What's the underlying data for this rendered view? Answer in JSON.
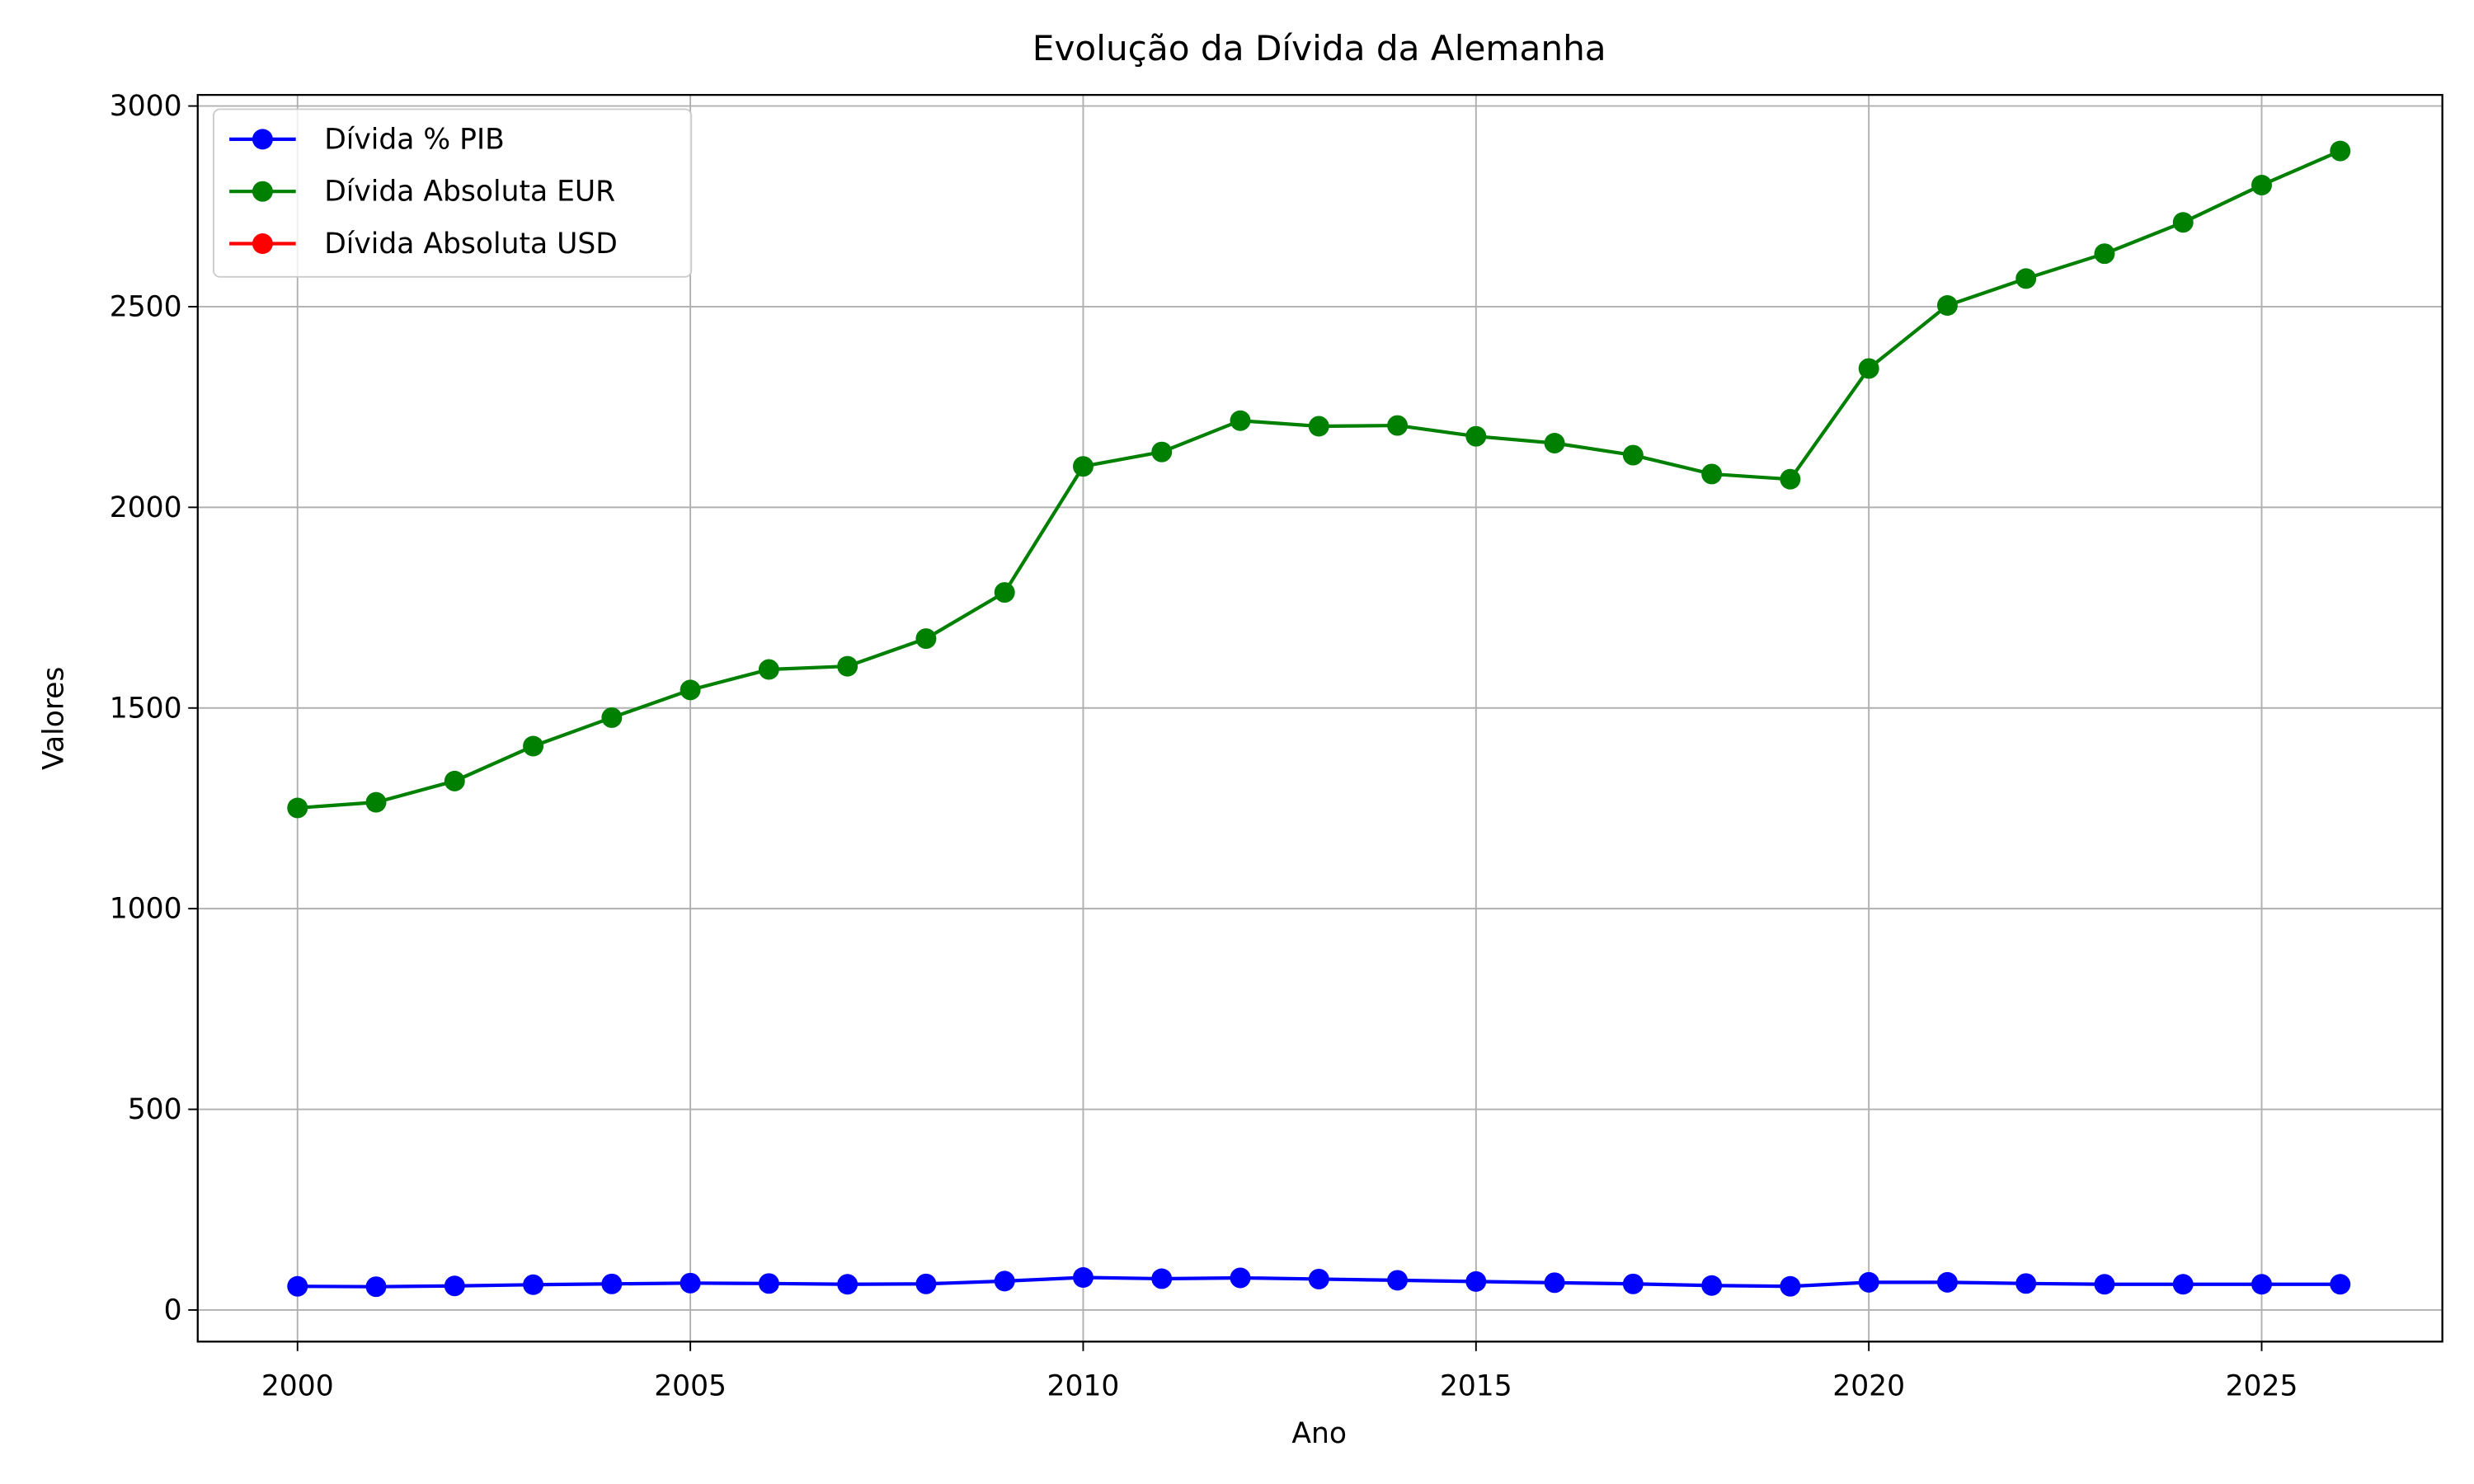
{
  "chart_data": {
    "type": "line",
    "title": "Evolução da Dívida da Alemanha",
    "xlabel": "Ano",
    "ylabel": "Valores",
    "x": [
      2000,
      2001,
      2002,
      2003,
      2004,
      2005,
      2006,
      2007,
      2008,
      2009,
      2010,
      2011,
      2012,
      2013,
      2014,
      2015,
      2016,
      2017,
      2018,
      2019,
      2020,
      2021,
      2022,
      2023,
      2024,
      2025,
      2026
    ],
    "series": [
      {
        "name": "Dívida % PIB",
        "color": "#0000ff",
        "values": [
          59,
          58,
          60,
          63,
          65,
          67,
          66,
          64,
          65,
          72,
          81,
          78,
          80,
          77,
          74,
          71,
          68,
          65,
          61,
          59,
          69,
          69,
          66,
          64,
          64,
          64,
          64
        ]
      },
      {
        "name": "Dívida Absoluta EUR",
        "color": "#008000",
        "values": [
          1251,
          1265,
          1318,
          1405,
          1476,
          1545,
          1596,
          1604,
          1673,
          1788,
          2102,
          2138,
          2216,
          2202,
          2204,
          2177,
          2160,
          2130,
          2083,
          2070,
          2346,
          2503,
          2570,
          2632,
          2710,
          2803,
          2888
        ]
      },
      {
        "name": "Dívida Absoluta USD",
        "color": "#ff0000",
        "values": [
          null,
          null,
          null,
          null,
          null,
          null,
          null,
          null,
          null,
          null,
          null,
          null,
          null,
          null,
          null,
          null,
          null,
          null,
          null,
          null,
          null,
          null,
          null,
          null,
          null,
          null,
          null
        ]
      }
    ],
    "xlim": [
      1998.73,
      2027.3
    ],
    "xticks": [
      2000,
      2005,
      2010,
      2015,
      2020,
      2025
    ],
    "ylim": [
      -78.8,
      3027.6
    ],
    "yticks": [
      0,
      500,
      1000,
      1500,
      2000,
      2500,
      3000
    ],
    "grid": true,
    "legend": "upper left"
  }
}
